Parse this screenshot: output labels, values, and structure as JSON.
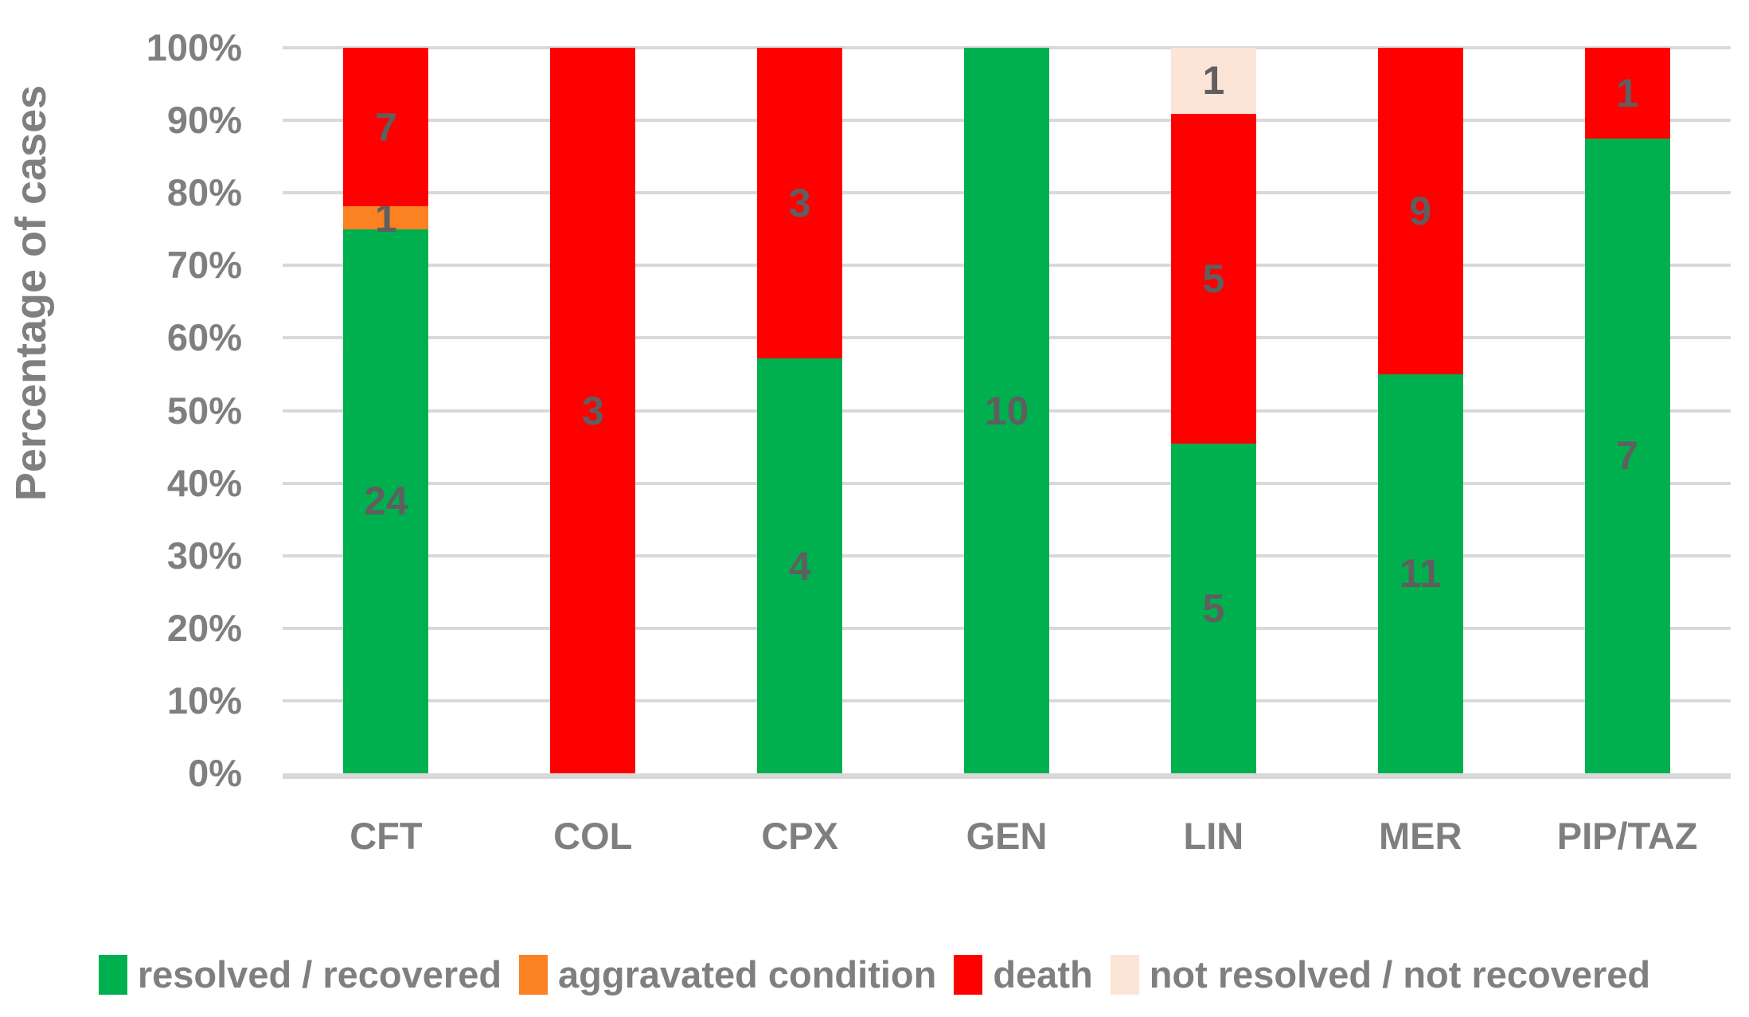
{
  "chart_data": {
    "type": "bar",
    "variant": "stacked-100-percent-column",
    "title": "",
    "ylabel": "Percentage of cases",
    "xlabel": "",
    "categories": [
      "CFT",
      "COL",
      "CPX",
      "GEN",
      "LIN",
      "MER",
      "PIP/TAZ"
    ],
    "series": [
      {
        "name": "resolved / recovered",
        "color": "#00B04F",
        "values": [
          24,
          0,
          4,
          10,
          5,
          11,
          7
        ]
      },
      {
        "name": "aggravated condition",
        "color": "#FB8122",
        "values": [
          1,
          0,
          0,
          0,
          0,
          0,
          0
        ]
      },
      {
        "name": "death",
        "color": "#FF0000",
        "values": [
          7,
          3,
          3,
          0,
          5,
          9,
          1
        ]
      },
      {
        "name": "not resolved / not recovered",
        "color": "#FCE4D6",
        "values": [
          0,
          0,
          0,
          0,
          1,
          0,
          0
        ]
      }
    ],
    "yticks": [
      "0%",
      "10%",
      "20%",
      "30%",
      "40%",
      "50%",
      "60%",
      "70%",
      "80%",
      "90%",
      "100%"
    ],
    "ylim": [
      0,
      100
    ],
    "grid": true,
    "legend_position": "bottom",
    "colors": {
      "gridline": "#D9D9D9",
      "axis_text": "#7F7F7F",
      "data_label": "#5F5F5F",
      "background": "#FFFFFF"
    }
  }
}
